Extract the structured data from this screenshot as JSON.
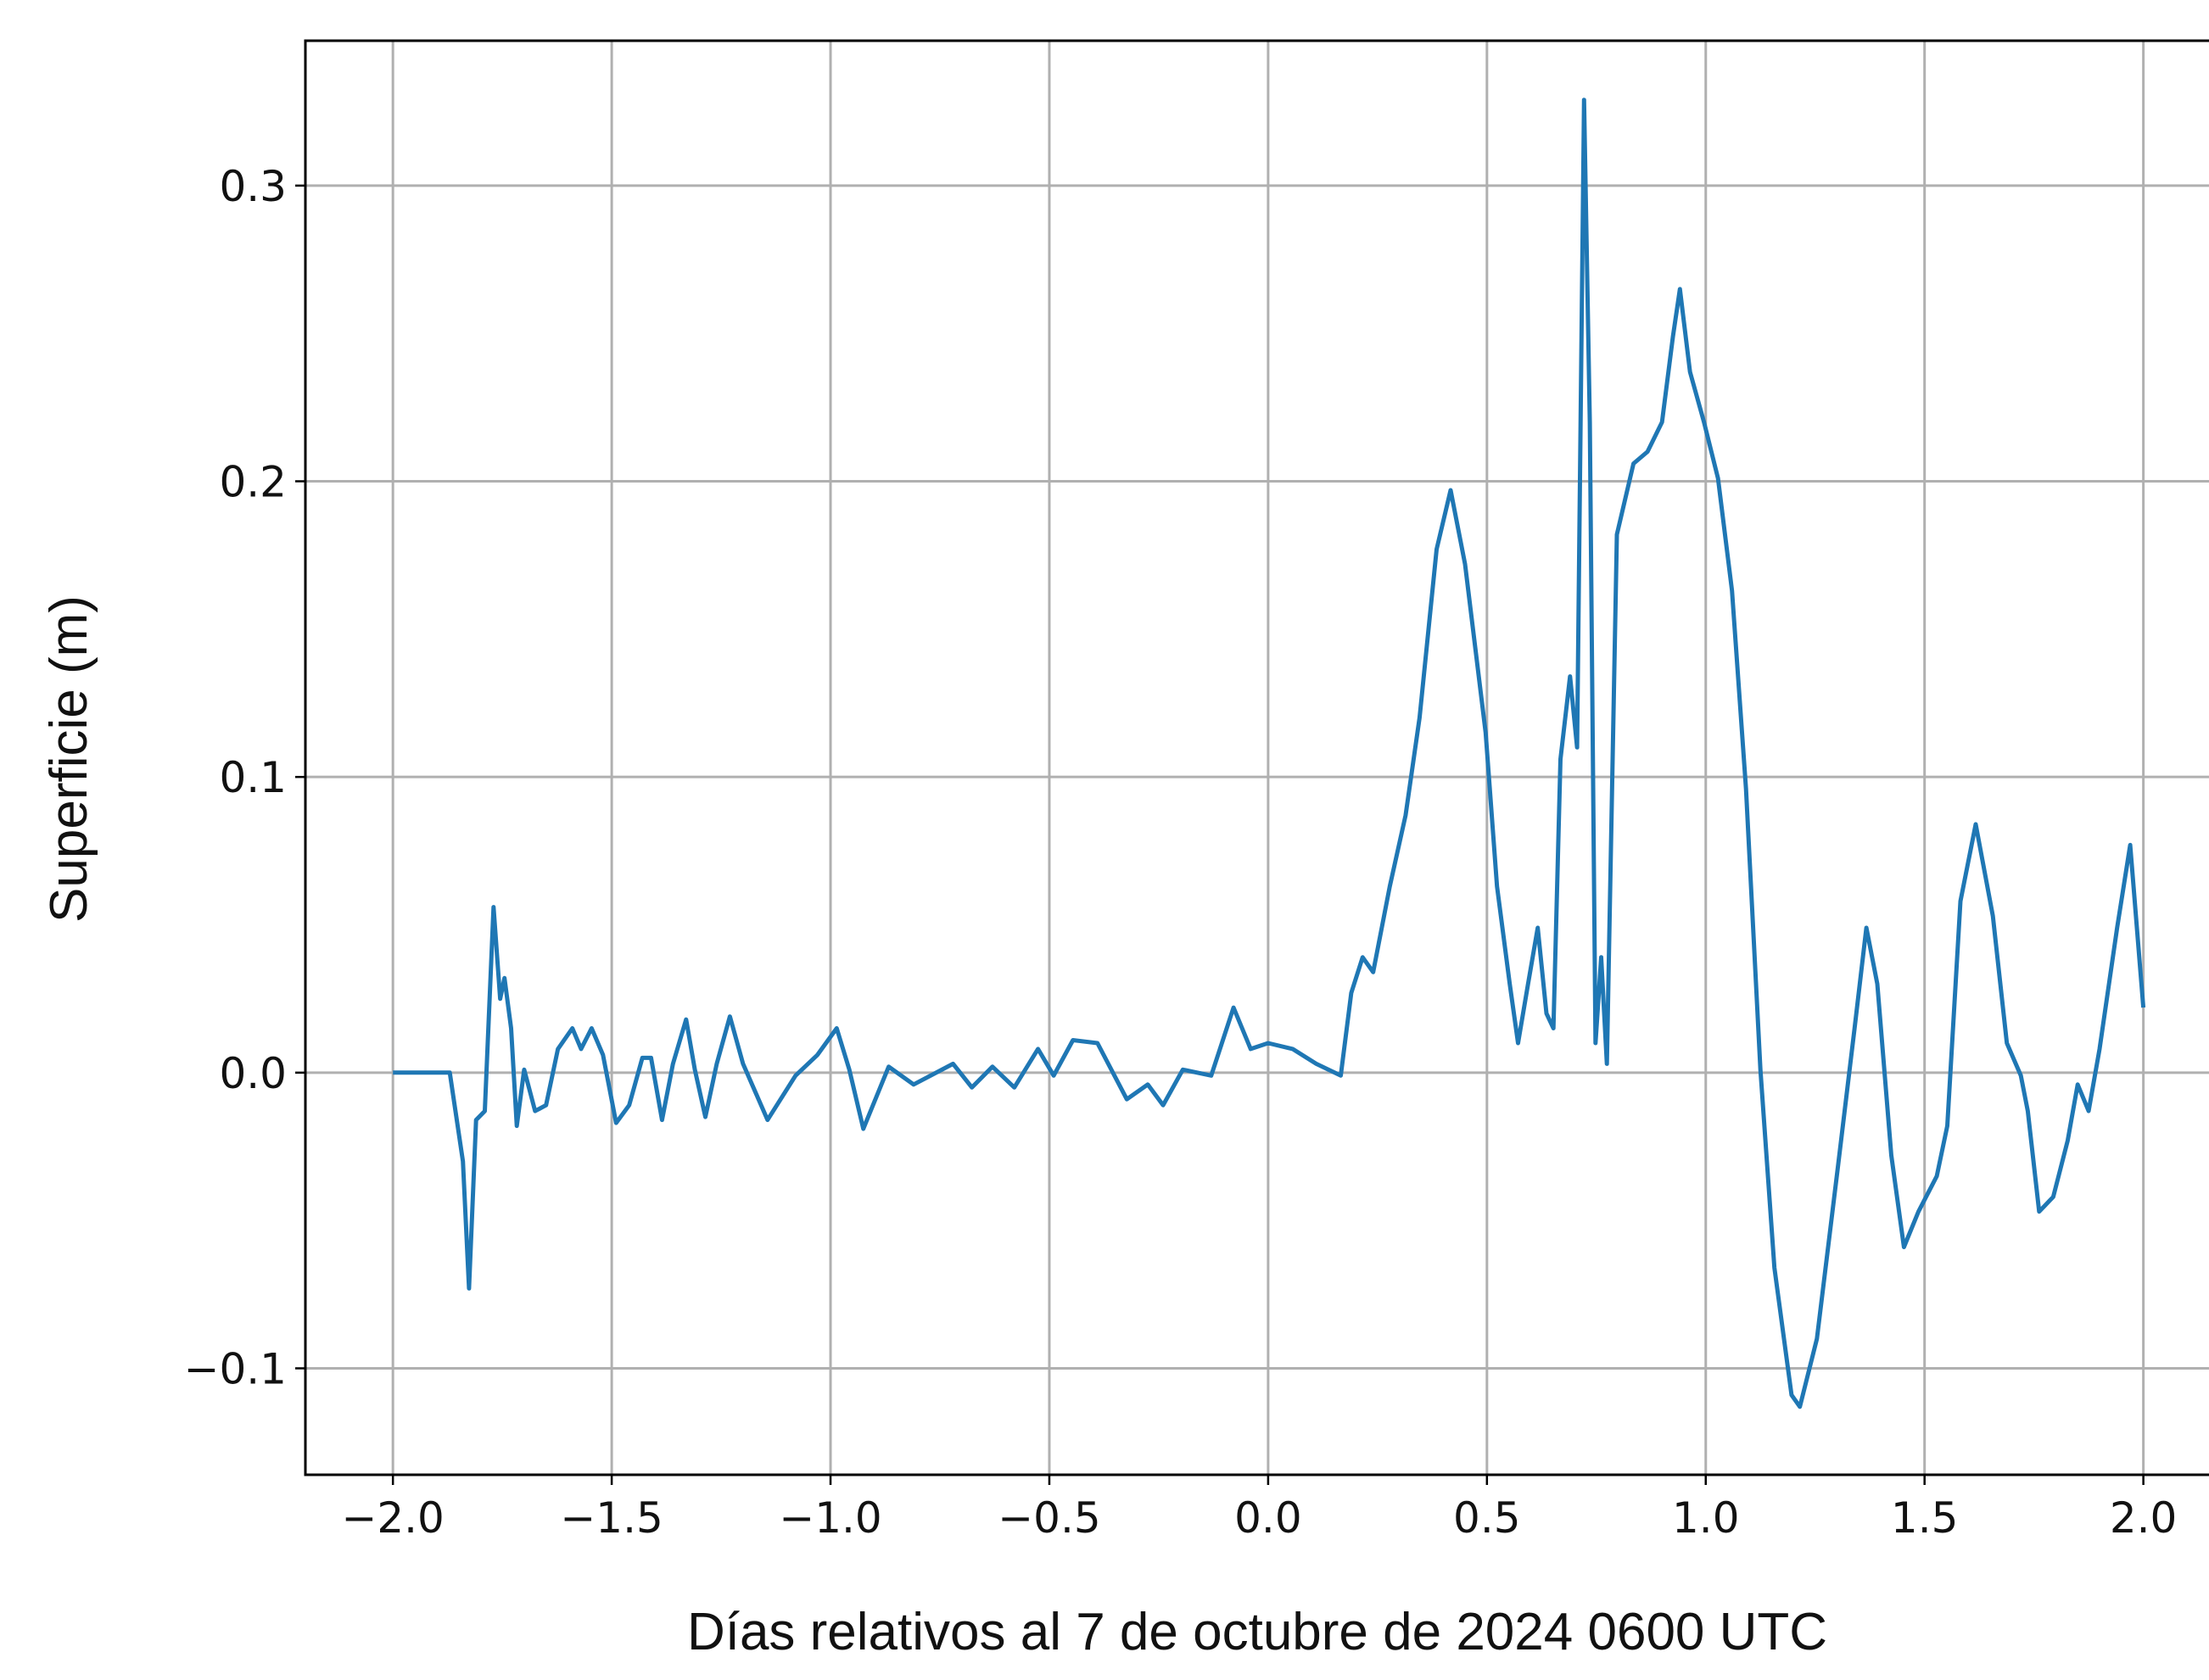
{
  "chart_data": {
    "type": "line",
    "x_label": "Días relativos al 7 de octubre de 2024 0600 UTC",
    "y_label": "Superficie (m)",
    "color": "#1f77b4",
    "grid": true,
    "xlim": [
      -2.2,
      2.15
    ],
    "ylim": [
      -0.136,
      0.349
    ],
    "xticks": [
      {
        "value": -2,
        "label": "−2.0"
      },
      {
        "value": -1.5,
        "label": "−1.5"
      },
      {
        "value": -1,
        "label": "−1.0"
      },
      {
        "value": -0.5,
        "label": "−0.5"
      },
      {
        "value": 0,
        "label": "0.0"
      },
      0.5,
      {
        "value": 1,
        "label": "1.0"
      },
      1.5,
      {
        "value": 2,
        "label": "2.0"
      }
    ],
    "yticks": [
      {
        "value": -0.1,
        "label": "−0.1"
      },
      {
        "value": 0,
        "label": "0.0"
      },
      0.1,
      0.2,
      0.3
    ],
    "x": [
      -2.0,
      -1.87,
      -1.84,
      -1.826,
      -1.81,
      -1.79,
      -1.77,
      -1.755,
      -1.745,
      -1.73,
      -1.717,
      -1.7,
      -1.675,
      -1.65,
      -1.623,
      -1.59,
      -1.57,
      -1.546,
      -1.52,
      -1.49,
      -1.46,
      -1.43,
      -1.41,
      -1.385,
      -1.36,
      -1.33,
      -1.31,
      -1.286,
      -1.26,
      -1.23,
      -1.2,
      -1.144,
      -1.08,
      -1.03,
      -0.986,
      -0.957,
      -0.925,
      -0.867,
      -0.81,
      -0.72,
      -0.677,
      -0.63,
      -0.58,
      -0.526,
      -0.49,
      -0.446,
      -0.39,
      -0.323,
      -0.275,
      -0.24,
      -0.195,
      -0.13,
      -0.079,
      -0.04,
      0.0,
      0.056,
      0.11,
      0.166,
      0.19,
      0.216,
      0.24,
      0.278,
      0.314,
      0.346,
      0.385,
      0.417,
      0.45,
      0.497,
      0.523,
      0.552,
      0.571,
      0.594,
      0.616,
      0.636,
      0.652,
      0.668,
      0.69,
      0.706,
      0.722,
      0.735,
      0.748,
      0.761,
      0.774,
      0.797,
      0.835,
      0.867,
      0.9,
      0.925,
      0.941,
      0.964,
      0.996,
      1.028,
      1.06,
      1.092,
      1.125,
      1.157,
      1.196,
      1.215,
      1.254,
      1.302,
      1.34,
      1.367,
      1.392,
      1.424,
      1.453,
      1.486,
      1.528,
      1.552,
      1.582,
      1.617,
      1.656,
      1.688,
      1.72,
      1.736,
      1.762,
      1.794,
      1.827,
      1.85,
      1.875,
      1.9,
      1.94,
      1.97,
      2.0
    ],
    "values": [
      0,
      0,
      -0.03,
      -0.073,
      -0.016,
      -0.013,
      0.056,
      0.025,
      0.032,
      0.015,
      -0.018,
      0.001,
      -0.013,
      -0.011,
      0.008,
      0.015,
      0.008,
      0.015,
      0.006,
      -0.017,
      -0.011,
      0.005,
      0.005,
      -0.016,
      0.003,
      0.018,
      0.001,
      -0.015,
      0.003,
      0.019,
      0.003,
      -0.016,
      -0.001,
      0.006,
      0.015,
      0.001,
      -0.019,
      0.002,
      -0.004,
      0.003,
      -0.005,
      0.002,
      -0.005,
      0.008,
      -0.001,
      0.011,
      0.01,
      -0.009,
      -0.004,
      -0.011,
      0.001,
      -0.001,
      0.022,
      0.008,
      0.01,
      0.008,
      0.003,
      -0.001,
      0.027,
      0.039,
      0.034,
      0.063,
      0.087,
      0.12,
      0.177,
      0.197,
      0.172,
      0.115,
      0.063,
      0.03,
      0.01,
      0.03,
      0.049,
      0.02,
      0.015,
      0.106,
      0.134,
      0.11,
      0.329,
      0.22,
      0.01,
      0.039,
      0.003,
      0.182,
      0.206,
      0.21,
      0.22,
      0.249,
      0.265,
      0.237,
      0.22,
      0.201,
      0.163,
      0.096,
      0.001,
      -0.066,
      -0.109,
      -0.113,
      -0.09,
      -0.032,
      0.015,
      0.049,
      0.03,
      -0.028,
      -0.059,
      -0.047,
      -0.035,
      -0.018,
      0.058,
      0.084,
      0.053,
      0.01,
      -0.001,
      -0.013,
      -0.047,
      -0.042,
      -0.023,
      -0.004,
      -0.013,
      0.008,
      0.049,
      0.077,
      0.022
    ]
  }
}
